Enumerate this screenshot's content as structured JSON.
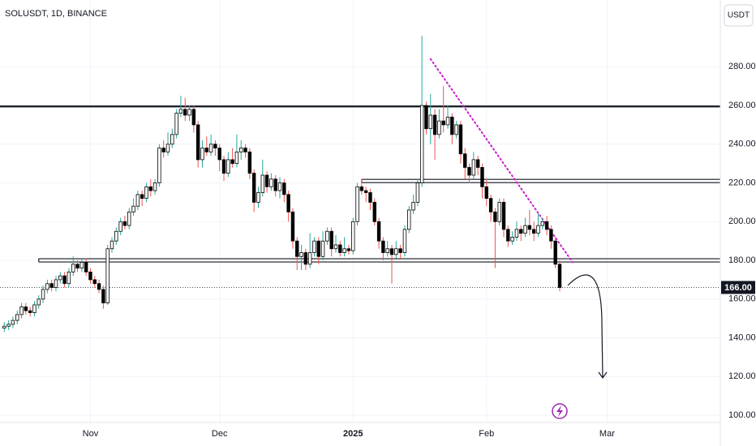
{
  "chart_data": {
    "type": "candlestick",
    "title": "SOLUSDT, 1D, BINANCE",
    "currency": "USDT",
    "xlim": [
      -1,
      166.3
    ],
    "xticks": [
      {
        "value": 20,
        "label": "Nov"
      },
      {
        "value": 50,
        "label": "Dec"
      },
      {
        "value": 81,
        "label": "2025"
      },
      {
        "value": 112,
        "label": "Feb"
      },
      {
        "value": 140,
        "label": "Mar"
      }
    ],
    "ylim": [
      92.5,
      301.9
    ],
    "yticks": [
      {
        "value": 100,
        "label": "100.00"
      },
      {
        "value": 120,
        "label": "120.00"
      },
      {
        "value": 140,
        "label": "140.00"
      },
      {
        "value": 160,
        "label": "160.00"
      },
      {
        "value": 180,
        "label": "180.00"
      },
      {
        "value": 200,
        "label": "200.00"
      },
      {
        "value": 220,
        "label": "220.00"
      },
      {
        "value": 240,
        "label": "240.00"
      },
      {
        "value": 260,
        "label": "260.00"
      },
      {
        "value": 280,
        "label": "280.00"
      }
    ],
    "grid": true,
    "up_color": "#ffffff",
    "down_color": "#000000",
    "up_wick": "#26a69a",
    "down_wick": "#ef5350",
    "last_price_label": "166.00",
    "series": [
      {
        "open": [
          145,
          146,
          147,
          149,
          152,
          156,
          154,
          153,
          157,
          160,
          165,
          168,
          166,
          170,
          172,
          168,
          174,
          178,
          176,
          179,
          174,
          170,
          168,
          165,
          158,
          186,
          190,
          195,
          200,
          198,
          205,
          208,
          214,
          212,
          218,
          216,
          220,
          238,
          236,
          240,
          245,
          256,
          258,
          255,
          258,
          250,
          232,
          238,
          236,
          240,
          238,
          232,
          225,
          232,
          230,
          236,
          238,
          236,
          225,
          210,
          215,
          224,
          218,
          222,
          216,
          220,
          214,
          205,
          190,
          182,
          184,
          178,
          184,
          190,
          182,
          190,
          195,
          186,
          188,
          184,
          186,
          185,
          200,
          218,
          216,
          215,
          210,
          200,
          190,
          184,
          186,
          183,
          186,
          184,
          196,
          206,
          210,
          220,
          260,
          248,
          255,
          245,
          252,
          250,
          254,
          245,
          250,
          235,
          228,
          224,
          232,
          228,
          218,
          212,
          205,
          200,
          210,
          196,
          190,
          192,
          196,
          194,
          198,
          196,
          194,
          198,
          200,
          196,
          190,
          178
        ],
        "high": [
          148,
          149,
          151,
          154,
          158,
          158,
          156,
          159,
          162,
          167,
          170,
          170,
          172,
          174,
          174,
          176,
          182,
          180,
          181,
          181,
          176,
          172,
          170,
          167,
          188,
          192,
          197,
          202,
          203,
          207,
          212,
          216,
          216,
          220,
          222,
          222,
          240,
          242,
          246,
          248,
          258,
          265,
          264,
          260,
          260,
          252,
          242,
          244,
          245,
          242,
          240,
          234,
          236,
          238,
          245,
          242,
          240,
          238,
          227,
          218,
          232,
          226,
          225,
          224,
          223,
          222,
          216,
          207,
          192,
          188,
          186,
          194,
          192,
          192,
          195,
          197,
          197,
          193,
          190,
          192,
          188,
          202,
          220,
          222,
          218,
          217,
          212,
          202,
          192,
          190,
          188,
          190,
          188,
          198,
          208,
          214,
          222,
          296,
          262,
          266,
          258,
          258,
          270,
          260,
          256,
          252,
          252,
          238,
          230,
          236,
          234,
          230,
          222,
          214,
          207,
          212,
          212,
          198,
          195,
          200,
          198,
          202,
          206,
          200,
          204,
          202,
          203,
          198,
          192,
          180
        ],
        "low": [
          143,
          144,
          145,
          147,
          150,
          152,
          151,
          151,
          155,
          158,
          163,
          164,
          164,
          168,
          166,
          166,
          172,
          174,
          174,
          172,
          168,
          166,
          163,
          155,
          157,
          184,
          188,
          193,
          196,
          196,
          203,
          206,
          208,
          210,
          213,
          214,
          218,
          233,
          234,
          238,
          243,
          254,
          252,
          252,
          246,
          228,
          228,
          234,
          234,
          234,
          226,
          221,
          223,
          228,
          228,
          232,
          233,
          222,
          205,
          207,
          213,
          215,
          216,
          213,
          212,
          210,
          200,
          186,
          175,
          175,
          175,
          176,
          182,
          178,
          180,
          188,
          182,
          184,
          182,
          182,
          183,
          183,
          198,
          214,
          210,
          206,
          198,
          186,
          180,
          182,
          168,
          181,
          181,
          182,
          194,
          204,
          208,
          218,
          245,
          240,
          232,
          243,
          246,
          248,
          240,
          243,
          230,
          222,
          220,
          222,
          224,
          212,
          208,
          200,
          176,
          198,
          192,
          187,
          188,
          190,
          190,
          192,
          193,
          190,
          192,
          196,
          193,
          186,
          176,
          164
        ],
        "close": [
          146,
          147,
          149,
          152,
          156,
          154,
          153,
          157,
          160,
          165,
          168,
          166,
          170,
          172,
          168,
          174,
          178,
          176,
          179,
          174,
          170,
          168,
          165,
          158,
          186,
          190,
          195,
          200,
          198,
          205,
          208,
          214,
          212,
          218,
          216,
          220,
          238,
          236,
          240,
          245,
          256,
          258,
          255,
          258,
          250,
          232,
          238,
          236,
          240,
          238,
          232,
          225,
          232,
          230,
          236,
          238,
          236,
          225,
          210,
          215,
          224,
          218,
          222,
          216,
          220,
          214,
          205,
          190,
          182,
          184,
          178,
          184,
          190,
          182,
          190,
          195,
          186,
          188,
          184,
          186,
          185,
          200,
          218,
          216,
          215,
          210,
          200,
          190,
          184,
          186,
          183,
          186,
          184,
          196,
          206,
          210,
          220,
          260,
          248,
          255,
          245,
          252,
          250,
          254,
          245,
          250,
          235,
          228,
          224,
          232,
          228,
          218,
          212,
          205,
          200,
          210,
          196,
          190,
          192,
          196,
          194,
          198,
          196,
          194,
          198,
          200,
          196,
          190,
          178,
          166
        ]
      }
    ],
    "hlines": [
      {
        "value": 259.5,
        "from": -1,
        "style": "single"
      },
      {
        "value": 221,
        "from": 83,
        "style": "double"
      },
      {
        "value": 180,
        "from": 8,
        "style": "double"
      }
    ],
    "trendline": {
      "from": [
        99,
        284
      ],
      "to": [
        132,
        179
      ],
      "color": "#c71fc7"
    }
  }
}
